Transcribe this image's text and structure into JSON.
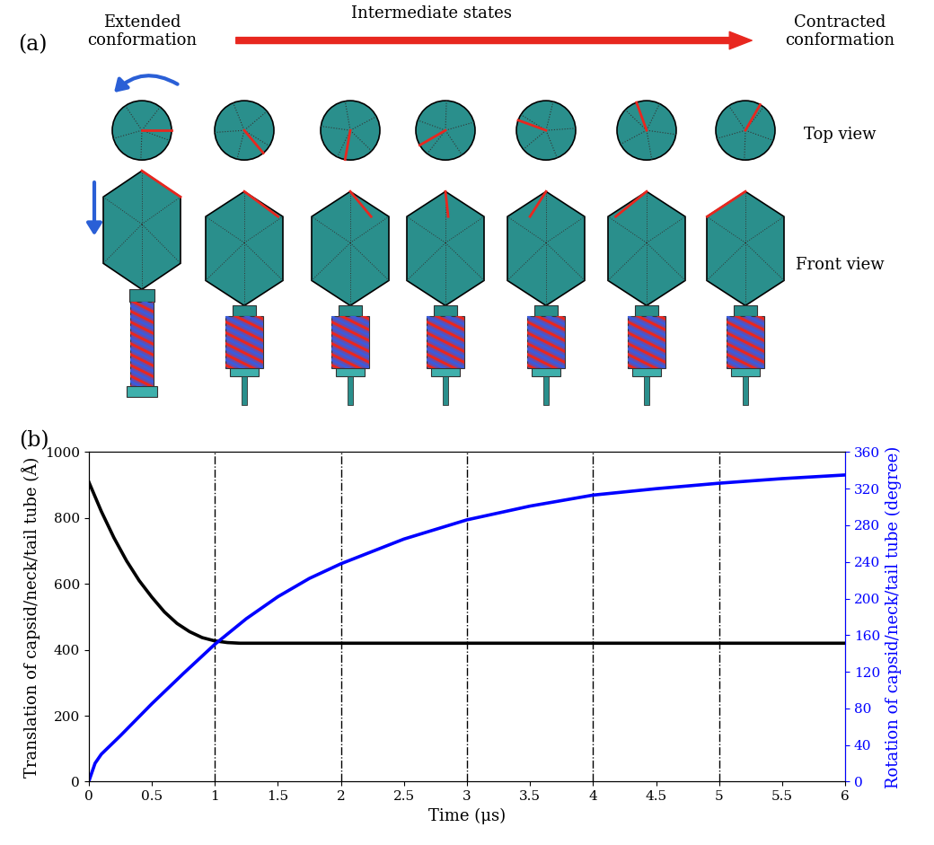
{
  "diagram": {
    "label": "(a)",
    "start_label": "Extended\nconformation",
    "arrow_label": "Intermediate states",
    "end_label": "Contracted\nconformation",
    "row_labels": [
      "Top view",
      "Front view"
    ]
  },
  "chart_data": {
    "type": "line",
    "label": "(b)",
    "x_label": "Time (μs)",
    "y_label": "Translation of capsid/neck/tail tube (Å)",
    "y2_label": "Rotation of capsid/neck/tail tube (degree)",
    "xlim": [
      0,
      6
    ],
    "xticks": [
      0,
      0.5,
      1,
      1.5,
      2,
      2.5,
      3,
      3.5,
      4,
      4.5,
      5,
      5.5,
      6
    ],
    "ylim": [
      0,
      1000
    ],
    "yticks": [
      0,
      200,
      400,
      600,
      800,
      1000
    ],
    "y2lim": [
      0,
      360
    ],
    "y2ticks": [
      0,
      40,
      80,
      120,
      160,
      200,
      240,
      280,
      320,
      360
    ],
    "reference_lines": [
      1,
      2,
      3,
      4,
      5
    ],
    "series": [
      {
        "color": "#000000",
        "line_style": "solid",
        "x": [
          0,
          0.1,
          0.2,
          0.3,
          0.4,
          0.5,
          0.6,
          0.7,
          0.8,
          0.9,
          1.0,
          1.1,
          1.2,
          1.5,
          2,
          3,
          4,
          5,
          6
        ],
        "values": [
          910,
          820,
          740,
          670,
          610,
          560,
          515,
          480,
          455,
          437,
          427,
          422,
          420,
          420,
          420,
          420,
          420,
          420,
          420
        ]
      },
      {
        "color": "#0000ff",
        "line_style": "solid",
        "axis": "y2",
        "x": [
          0,
          0.05,
          0.1,
          0.25,
          0.5,
          0.75,
          1.0,
          1.25,
          1.5,
          1.75,
          2.0,
          2.5,
          3.0,
          3.5,
          4.0,
          4.5,
          5.0,
          5.5,
          6.0
        ],
        "values": [
          0,
          20,
          30,
          50,
          85,
          118,
          150,
          178,
          202,
          222,
          238,
          265,
          286,
          301,
          313,
          320,
          326,
          331,
          335
        ]
      }
    ]
  }
}
